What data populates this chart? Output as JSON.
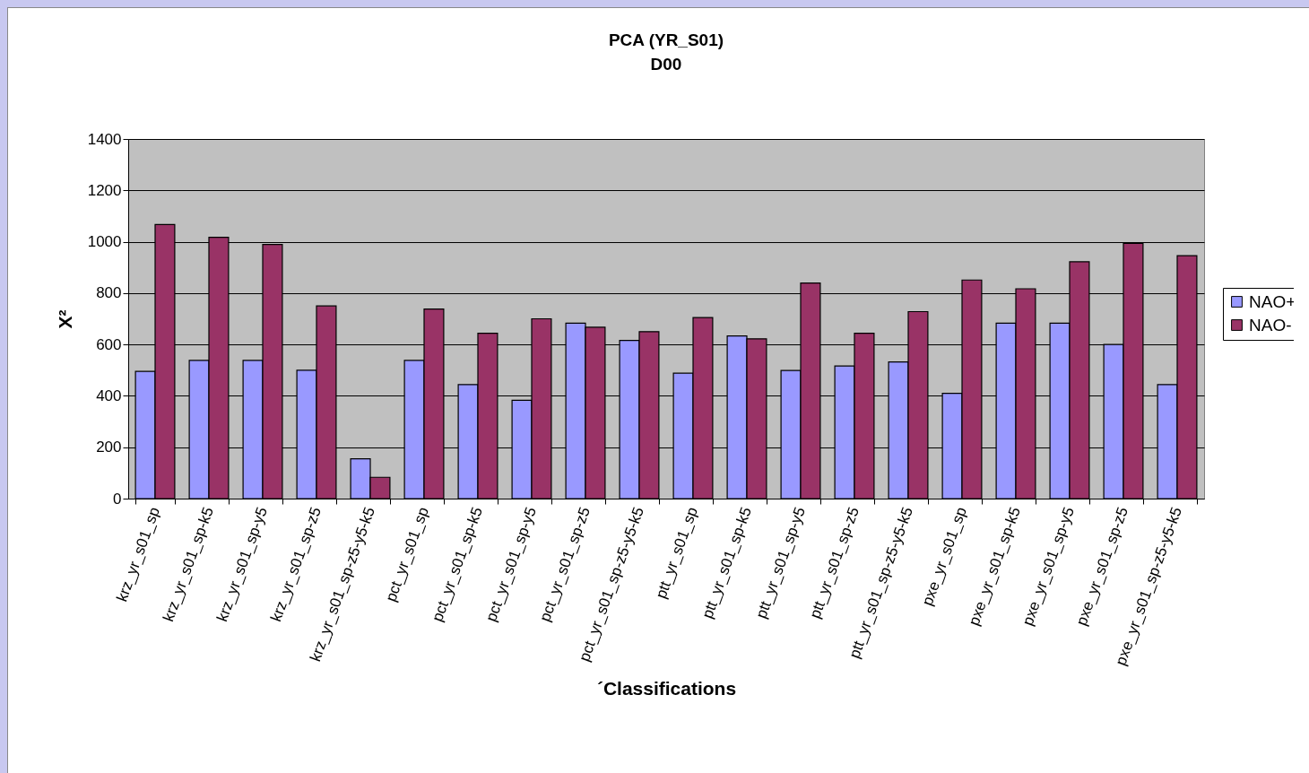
{
  "chart_data": {
    "type": "bar",
    "title": "PCA (YR_S01)",
    "subtitle": "D00",
    "xlabel": "´Classifications",
    "ylabel": "X²",
    "categories": [
      "krz_yr_s01_sp",
      "krz_yr_s01_sp-k5",
      "krz_yr_s01_sp-y5",
      "krz_yr_s01_sp-z5",
      "krz_yr_s01_sp-z5-y5-k5",
      "pct_yr_s01_sp",
      "pct_yr_s01_sp-k5",
      "pct_yr_s01_sp-y5",
      "pct_yr_s01_sp-z5",
      "pct_yr_s01_sp-z5-y5-k5",
      "ptt_yr_s01_sp",
      "ptt_yr_s01_sp-k5",
      "ptt_yr_s01_sp-y5",
      "ptt_yr_s01_sp-z5",
      "ptt_yr_s01_sp-z5-y5-k5",
      "pxe_yr_s01_sp",
      "pxe_yr_s01_sp-k5",
      "pxe_yr_s01_sp-y5",
      "pxe_yr_s01_sp-z5",
      "pxe_yr_s01_sp-z5-y5-k5"
    ],
    "series": [
      {
        "name": "NAO+",
        "color": "#9999ff",
        "values": [
          495,
          538,
          538,
          500,
          155,
          538,
          444,
          383,
          683,
          616,
          488,
          633,
          499,
          516,
          532,
          410,
          683,
          683,
          600,
          444
        ]
      },
      {
        "name": "NAO-",
        "color": "#993366",
        "values": [
          1067,
          1017,
          989,
          750,
          83,
          738,
          644,
          700,
          667,
          650,
          705,
          622,
          839,
          644,
          728,
          851,
          817,
          922,
          994,
          946
        ]
      }
    ],
    "ylim": [
      0,
      1400
    ],
    "yticks": [
      0,
      200,
      400,
      600,
      800,
      1000,
      1200,
      1400
    ],
    "grid": "y",
    "legend": "right"
  }
}
